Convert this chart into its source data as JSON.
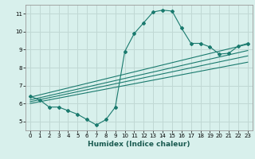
{
  "xlabel": "Humidex (Indice chaleur)",
  "ylabel": "",
  "xlim": [
    -0.5,
    23.5
  ],
  "ylim": [
    4.5,
    11.5
  ],
  "xticks": [
    0,
    1,
    2,
    3,
    4,
    5,
    6,
    7,
    8,
    9,
    10,
    11,
    12,
    13,
    14,
    15,
    16,
    17,
    18,
    19,
    20,
    21,
    22,
    23
  ],
  "yticks": [
    5,
    6,
    7,
    8,
    9,
    10,
    11
  ],
  "bg_color": "#d8f0ec",
  "grid_color": "#c0d8d4",
  "line_color": "#1a7a6e",
  "main_series_x": [
    0,
    1,
    2,
    3,
    4,
    5,
    6,
    7,
    8,
    9,
    10,
    11,
    12,
    13,
    14,
    15,
    16,
    17,
    18,
    19,
    20,
    21,
    22,
    23
  ],
  "main_series_y": [
    6.4,
    6.2,
    5.8,
    5.8,
    5.6,
    5.4,
    5.1,
    4.8,
    5.1,
    5.8,
    8.9,
    9.9,
    10.5,
    11.1,
    11.2,
    11.15,
    10.2,
    9.35,
    9.35,
    9.15,
    8.75,
    8.8,
    9.2,
    9.35
  ],
  "reg_lines": [
    {
      "x": [
        0,
        23
      ],
      "y": [
        6.35,
        9.3
      ]
    },
    {
      "x": [
        0,
        23
      ],
      "y": [
        6.2,
        8.95
      ]
    },
    {
      "x": [
        0,
        23
      ],
      "y": [
        6.1,
        8.65
      ]
    },
    {
      "x": [
        0,
        23
      ],
      "y": [
        6.0,
        8.3
      ]
    }
  ]
}
